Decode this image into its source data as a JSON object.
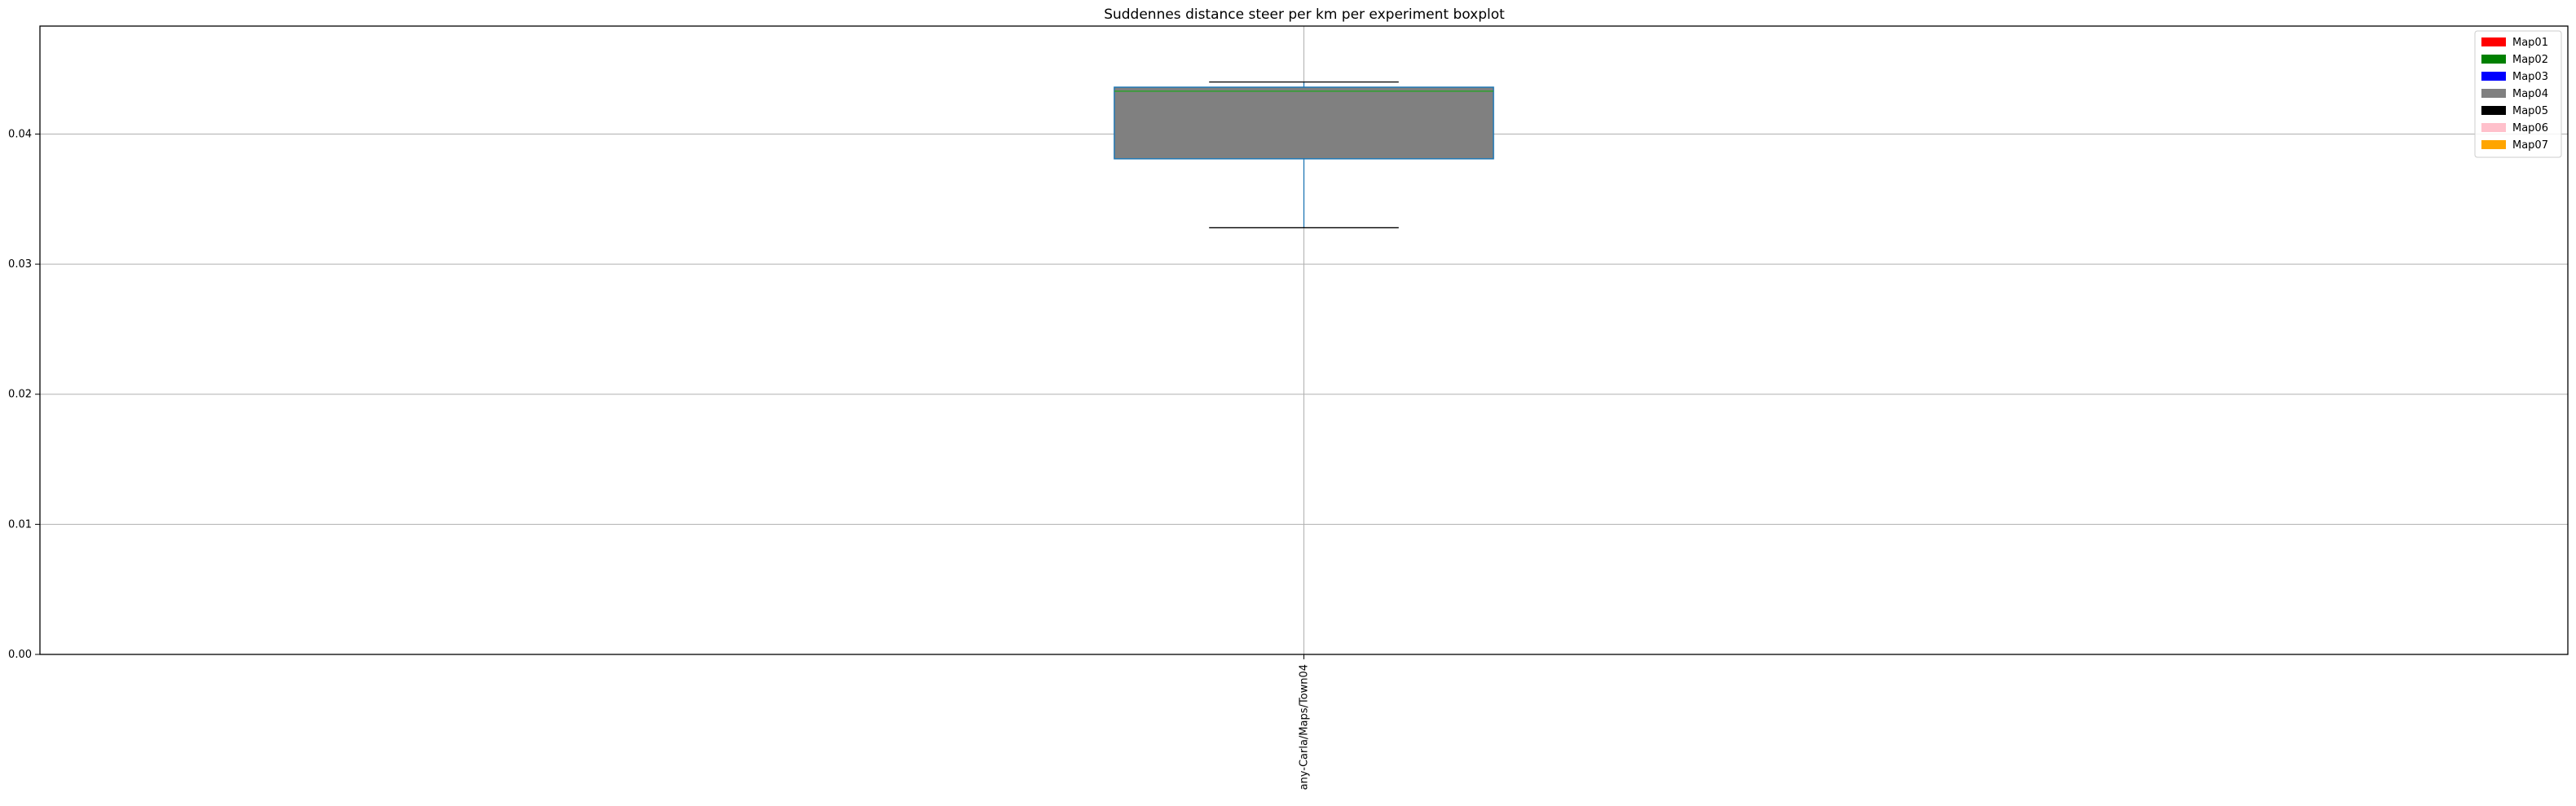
{
  "chart_data": {
    "type": "boxplot",
    "title": "Suddennes distance steer per km per experiment boxplot",
    "xlabel": "",
    "ylabel": "",
    "ylim": [
      0.0,
      0.0483
    ],
    "yticks": [
      0.0,
      0.01,
      0.02,
      0.03,
      0.04
    ],
    "ytick_labels": [
      "0.00",
      "0.01",
      "0.02",
      "0.03",
      "0.04"
    ],
    "grid": true,
    "legend_position": "top-right",
    "legend": [
      {
        "label": "Map01",
        "color": "#ff0000"
      },
      {
        "label": "Map02",
        "color": "#008000"
      },
      {
        "label": "Map03",
        "color": "#0000ff"
      },
      {
        "label": "Map04",
        "color": "#808080"
      },
      {
        "label": "Map05",
        "color": "#000000"
      },
      {
        "label": "Map06",
        "color": "#ffc0cb"
      },
      {
        "label": "Map07",
        "color": "#ffa500"
      }
    ],
    "boxes": [
      {
        "category": "any-Carla/Maps/Town04",
        "whisker_low": 0.0328,
        "q1": 0.0381,
        "median": 0.0433,
        "q3": 0.0436,
        "whisker_high": 0.044,
        "fill_color": "#808080",
        "edge_color": "#1f77b4",
        "median_color": "#2ca02c"
      }
    ]
  }
}
